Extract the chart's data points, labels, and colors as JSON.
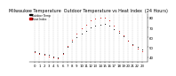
{
  "title": "Milwaukee Temperature  Outdoor Temperature vs Heat Index  (24 Hours)",
  "background_color": "#ffffff",
  "plot_bg_color": "#ffffff",
  "grid_color": "#888888",
  "hours": [
    0,
    1,
    2,
    3,
    4,
    5,
    6,
    7,
    8,
    9,
    10,
    11,
    12,
    13,
    14,
    15,
    16,
    17,
    18,
    19,
    20,
    21,
    22,
    23
  ],
  "temp": [
    46,
    44,
    43,
    42,
    41,
    40,
    44,
    50,
    56,
    60,
    64,
    67,
    70,
    72,
    73,
    74,
    72,
    68,
    65,
    61,
    57,
    53,
    50,
    48
  ],
  "heat_index": [
    45,
    43,
    42,
    41,
    40,
    39,
    43,
    51,
    58,
    64,
    69,
    73,
    77,
    79,
    80,
    80,
    77,
    72,
    67,
    62,
    57,
    52,
    49,
    46
  ],
  "temp_color": "#000000",
  "heat_color": "#cc0000",
  "ylim": [
    35,
    85
  ],
  "ytick_vals": [
    40,
    50,
    60,
    70,
    80
  ],
  "ytick_labels": [
    "40",
    "50",
    "60",
    "70",
    "80"
  ],
  "legend_labels": [
    "Outdoor Temp",
    "Heat Index"
  ],
  "legend_colors": [
    "#000000",
    "#cc0000"
  ],
  "title_fontsize": 3.5,
  "tick_fontsize": 2.8,
  "legend_fontsize": 2.2,
  "marker_size": 1.5
}
